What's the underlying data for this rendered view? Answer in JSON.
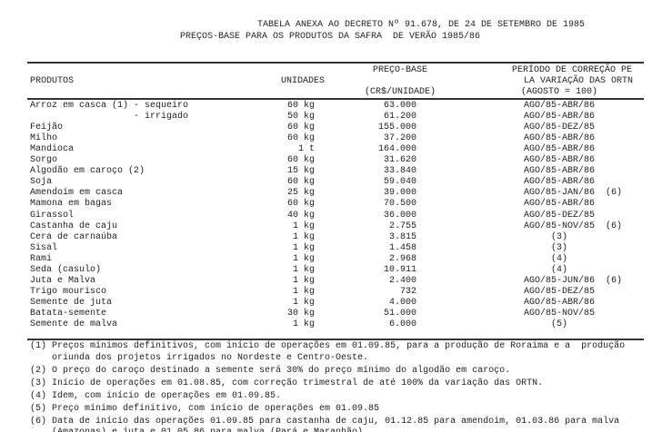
{
  "title": "TABELA ANEXA AO DECRETO Nº 91.678, DE 24 DE SETEMBRO DE 1985",
  "subtitle": "PREÇOS-BASE PARA OS PRODUTOS DA SAFRA  DE VERÃO 1985/86",
  "headers": {
    "produtos": "PRODUTOS",
    "unidades": "UNIDADES",
    "preco_line1": "PREÇO-BASE",
    "preco_line2": "(CR$/UNIDADE)",
    "periodo_line1": "PERÍODO DE CORREÇÃO PE",
    "periodo_line2": "LA VARIAÇÃO DAS ORTN",
    "periodo_line3": "(AGOSTO = 100)"
  },
  "rows": [
    {
      "produto": "Arroz em casca (1) - sequeiro",
      "unidade": "60 kg",
      "preco": "63.000",
      "periodo": "AGO/85-ABR/86",
      "nota": ""
    },
    {
      "produto": "                   - irrigado",
      "unidade": "50 kg",
      "preco": "61.200",
      "periodo": "AGO/85-ABR/86",
      "nota": ""
    },
    {
      "produto": "Feijão",
      "unidade": "60 kg",
      "preco": "155.000",
      "periodo": "AGO/85-DEZ/85",
      "nota": ""
    },
    {
      "produto": "Milho",
      "unidade": "60 kg",
      "preco": "37.200",
      "periodo": "AGO/85-ABR/86",
      "nota": ""
    },
    {
      "produto": "Mandioca",
      "unidade": "1 t",
      "preco": "164.000",
      "periodo": "AGO/85-ABR/86",
      "nota": ""
    },
    {
      "produto": "Sorgo",
      "unidade": "60 kg",
      "preco": "31.620",
      "periodo": "AGO/85-ABR/86",
      "nota": ""
    },
    {
      "produto": "Algodão em caroço (2)",
      "unidade": "15 kg",
      "preco": "33.840",
      "periodo": "AGO/85-ABR/86",
      "nota": ""
    },
    {
      "produto": "Soja",
      "unidade": "60 kg",
      "preco": "59.040",
      "periodo": "AGO/85-ABR/86",
      "nota": ""
    },
    {
      "produto": "Amendoim em casca",
      "unidade": "25 kg",
      "preco": "39.000",
      "periodo": "AGO/85-JAN/86",
      "nota": "(6)"
    },
    {
      "produto": "Mamona em bagas",
      "unidade": "60 kg",
      "preco": "70.500",
      "periodo": "AGO/85-ABR/86",
      "nota": ""
    },
    {
      "produto": "Girassol",
      "unidade": "40 kg",
      "preco": "36.000",
      "periodo": "AGO/85-DEZ/85",
      "nota": ""
    },
    {
      "produto": "Castanha de caju",
      "unidade": "1 kg",
      "preco": "2.755",
      "periodo": "AGO/85-NOV/85",
      "nota": "(6)"
    },
    {
      "produto": "Cera de carnaúba",
      "unidade": "1 kg",
      "preco": "3.815",
      "periodo": "(3)",
      "nota": ""
    },
    {
      "produto": "Sisal",
      "unidade": "1 kg",
      "preco": "1.458",
      "periodo": "(3)",
      "nota": ""
    },
    {
      "produto": "Rami",
      "unidade": "1 kg",
      "preco": "2.968",
      "periodo": "(4)",
      "nota": ""
    },
    {
      "produto": "Seda (casulo)",
      "unidade": "1 kg",
      "preco": "10.911",
      "periodo": "(4)",
      "nota": ""
    },
    {
      "produto": "Juta e Malva",
      "unidade": "1 kg",
      "preco": "2.400",
      "periodo": "AGO/85-JUN/86",
      "nota": "(6)"
    },
    {
      "produto": "Trigo mourisco",
      "unidade": "1 kg",
      "preco": "732",
      "periodo": "AGO/85-DEZ/85",
      "nota": ""
    },
    {
      "produto": "Semente de juta",
      "unidade": "1 kg",
      "preco": "4.000",
      "periodo": "AGO/85-ABR/86",
      "nota": ""
    },
    {
      "produto": "Batata-semente",
      "unidade": "30 kg",
      "preco": "51.000",
      "periodo": "AGO/85-NOV/85",
      "nota": ""
    },
    {
      "produto": "Semente de malva",
      "unidade": "1 kg",
      "preco": "6.000",
      "periodo": "(5)",
      "nota": ""
    }
  ],
  "footnotes": [
    "(1) Preços mínimos definitivos, com início de operações em 01.09.85, para a produção de Roraima e a  produção\n    oriunda dos projetos irrigados no Nordeste e Centro-Oeste.",
    "(2) O preço do caroço destinado a semente será 30% do preço mínimo do algodão em caroço.",
    "(3) Início de operações em 01.08.85, com correção trimestral de até 100% da variação das ORTN.",
    "(4) Idem, com início de operações em 01.09.85.",
    "(5) Preço mínimo definitivo, com início de operações em 01.09.85",
    "(6) Data de início das operações 01.09.85 para castanha de caju, 01.12.85 para amendoim, 01.03.86 para malva\n    (Amazonas) e juta e 01.05.86 para malva (Pará e Maranhão)."
  ]
}
